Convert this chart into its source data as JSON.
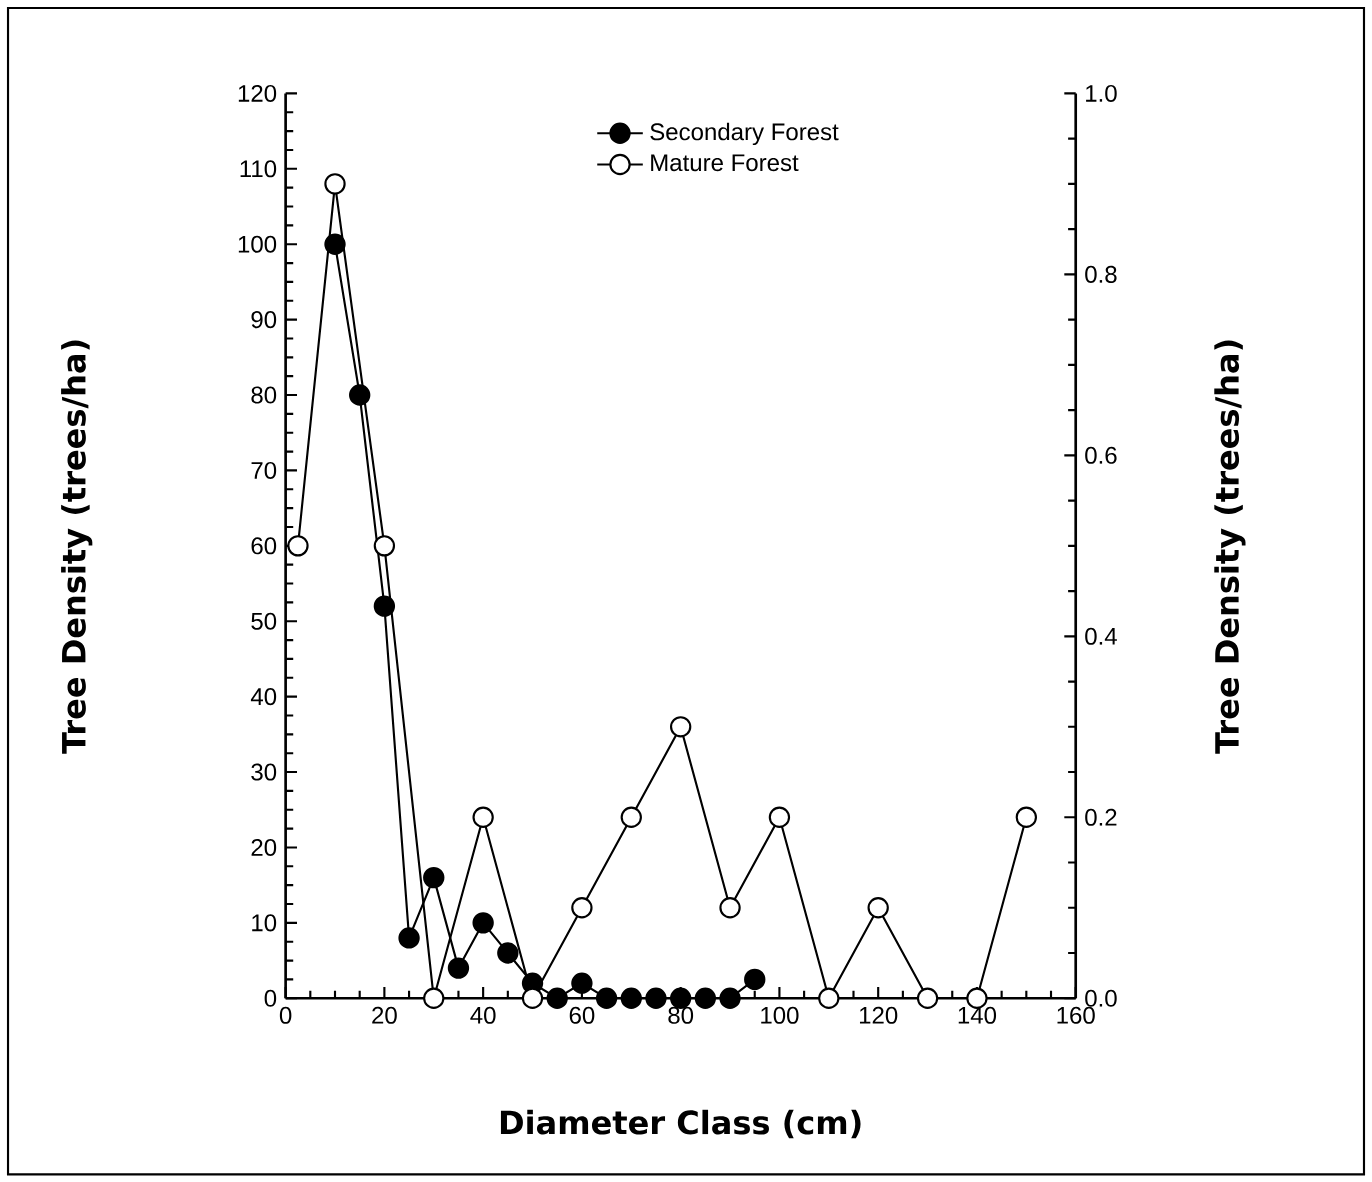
{
  "chart_data": {
    "type": "line",
    "xlabel": "Diameter Class (cm)",
    "ylabel": "Tree Density (trees/ha)",
    "y2label": "Tree Density (trees/ha)",
    "xlim": [
      0,
      160
    ],
    "xticks": [
      0,
      20,
      40,
      60,
      80,
      100,
      120,
      140,
      160
    ],
    "ylim": [
      0,
      120
    ],
    "yticks": [
      0,
      10,
      20,
      30,
      40,
      50,
      60,
      70,
      80,
      90,
      100,
      110,
      120
    ],
    "y2lim": [
      0,
      1
    ],
    "y2ticks": [
      {
        "value": 0,
        "label": "0.0"
      },
      0.2,
      0.4,
      0.6,
      0.8,
      {
        "value": 1,
        "label": "1.0"
      }
    ],
    "legend": "top",
    "grid": false,
    "series": [
      {
        "name": "Secondary Forest",
        "color": "#000000",
        "marker": "circle",
        "axis": "y",
        "x": [
          10,
          15,
          20,
          25,
          30,
          35,
          40,
          45,
          50,
          55,
          60,
          65,
          70,
          75,
          80,
          85,
          90,
          95
        ],
        "values": [
          100,
          80,
          52,
          8,
          16,
          4,
          10,
          6,
          2,
          0,
          2,
          0,
          0,
          0,
          0,
          0,
          0,
          2.5
        ]
      },
      {
        "name": "Mature Forest",
        "color": "#ffffff",
        "marker": "circle",
        "axis": "y2",
        "x": [
          2.5,
          10,
          20,
          30,
          40,
          50,
          60,
          70,
          80,
          90,
          100,
          110,
          120,
          130,
          140,
          150
        ],
        "values": [
          0.5,
          0.9,
          0.5,
          0,
          0.2,
          0,
          0.1,
          0.2,
          0.3,
          0.1,
          0.2,
          0,
          0.1,
          0,
          0,
          0.2
        ]
      }
    ]
  }
}
